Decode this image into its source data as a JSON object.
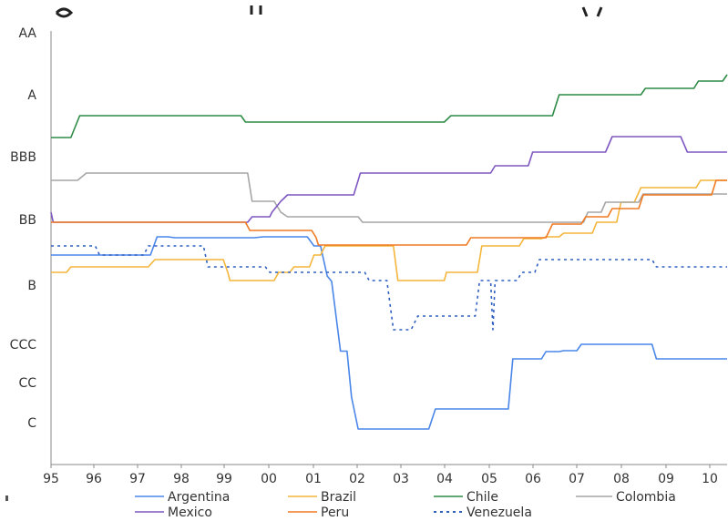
{
  "chart_data": {
    "type": "line",
    "title": "",
    "xlabel": "",
    "ylabel": "",
    "x_ticks": [
      "95",
      "96",
      "97",
      "98",
      "99",
      "00",
      "01",
      "02",
      "03",
      "04",
      "05",
      "06",
      "07",
      "08",
      "09",
      "10"
    ],
    "y_ticks": [
      "AA",
      "A",
      "BBB",
      "BB",
      "B",
      "CCC",
      "CC",
      "C"
    ],
    "xlim": [
      1995,
      2010.3
    ],
    "grid": false,
    "legend_position": "bottom",
    "series": [
      {
        "name": "Argentina",
        "color": "#4a86e8",
        "style": "solid",
        "points": [
          [
            1995,
            4.25
          ],
          [
            1997.25,
            4.25
          ],
          [
            1997.4,
            4.6
          ],
          [
            1997.65,
            4.6
          ],
          [
            1997.8,
            4.75
          ],
          [
            1999.6,
            4.75
          ],
          [
            1999.8,
            4.6
          ],
          [
            2000.8,
            4.6
          ],
          [
            2000.95,
            4.4
          ],
          [
            2001.1,
            4.4
          ],
          [
            2001.25,
            3.95
          ],
          [
            2001.35,
            3.8
          ],
          [
            2001.55,
            2.8
          ],
          [
            2001.7,
            2.8
          ],
          [
            2001.8,
            1.7
          ],
          [
            2001.95,
            0.8
          ],
          [
            2003.55,
            0.8
          ],
          [
            2003.7,
            1.05
          ],
          [
            2005.35,
            1.05
          ],
          [
            2005.45,
            2.65
          ],
          [
            2006.1,
            2.65
          ],
          [
            2006.2,
            2.75
          ],
          [
            2006.5,
            2.75
          ],
          [
            2006.6,
            2.85
          ],
          [
            2006.9,
            2.85
          ],
          [
            2007.0,
            2.95
          ],
          [
            2008.6,
            2.95
          ],
          [
            2008.7,
            2.6
          ],
          [
            2010.3,
            2.6
          ]
        ]
      },
      {
        "name": "Brazil",
        "color": "#f4b63a",
        "style": "solid",
        "points": [
          [
            1995,
            4.0
          ],
          [
            1995.35,
            4.0
          ],
          [
            1995.45,
            4.1
          ],
          [
            1997.2,
            4.1
          ],
          [
            1997.35,
            4.2
          ],
          [
            1998.9,
            4.2
          ],
          [
            1999.0,
            4.0
          ],
          [
            1999.05,
            3.85
          ],
          [
            2000.05,
            3.85
          ],
          [
            2000.15,
            4.0
          ],
          [
            2000.4,
            4.0
          ],
          [
            2000.5,
            4.1
          ],
          [
            2000.85,
            4.1
          ],
          [
            2000.95,
            4.25
          ],
          [
            2001.1,
            4.25
          ],
          [
            2001.2,
            4.4
          ],
          [
            2001.85,
            4.4
          ],
          [
            2002.75,
            4.4
          ],
          [
            2002.85,
            3.85
          ],
          [
            2003.9,
            3.85
          ],
          [
            2003.95,
            4.0
          ],
          [
            2004.65,
            4.0
          ],
          [
            2004.75,
            4.4
          ],
          [
            2005.6,
            4.4
          ],
          [
            2005.7,
            4.5
          ],
          [
            2006.1,
            4.5
          ],
          [
            2006.2,
            4.6
          ],
          [
            2006.5,
            4.6
          ],
          [
            2006.6,
            4.8
          ],
          [
            2007.25,
            4.8
          ],
          [
            2007.35,
            5.05
          ],
          [
            2007.8,
            5.05
          ],
          [
            2007.9,
            5.3
          ],
          [
            2008.2,
            5.3
          ],
          [
            2008.35,
            5.6
          ],
          [
            2009.6,
            5.6
          ],
          [
            2009.7,
            5.75
          ],
          [
            2010.3,
            5.75
          ]
        ]
      },
      {
        "name": "Chile",
        "color": "#2e8b46",
        "style": "solid",
        "points": [
          [
            1995,
            6.35
          ],
          [
            1995.45,
            6.35
          ],
          [
            1995.65,
            6.65
          ],
          [
            1999.3,
            6.65
          ],
          [
            1999.4,
            6.55
          ],
          [
            2003.9,
            6.55
          ],
          [
            2004.05,
            6.7
          ],
          [
            2006.35,
            6.7
          ],
          [
            2006.5,
            6.9
          ],
          [
            2007.55,
            6.9
          ],
          [
            2007.65,
            7.0
          ],
          [
            2008.35,
            7.0
          ],
          [
            2008.45,
            7.1
          ],
          [
            2009.55,
            7.1
          ],
          [
            2009.65,
            7.2
          ],
          [
            2010.2,
            7.2
          ],
          [
            2010.3,
            7.28
          ]
        ]
      },
      {
        "name": "Colombia",
        "color": "#a6a6a6",
        "style": "solid",
        "points": [
          [
            1995,
            5.75
          ],
          [
            1995.6,
            5.75
          ],
          [
            1995.8,
            5.85
          ],
          [
            1999.45,
            5.85
          ],
          [
            1999.55,
            5.35
          ],
          [
            2000.05,
            5.35
          ],
          [
            2000.2,
            5.15
          ],
          [
            2000.35,
            5.1
          ],
          [
            2001.95,
            5.1
          ],
          [
            2002.05,
            5.0
          ],
          [
            2007.05,
            5.0
          ],
          [
            2007.15,
            5.15
          ],
          [
            2007.45,
            5.15
          ],
          [
            2007.55,
            5.3
          ],
          [
            2008.3,
            5.3
          ],
          [
            2008.4,
            5.55
          ],
          [
            2010.3,
            5.55
          ]
        ]
      },
      {
        "name": "Mexico",
        "color": "#7e57c2",
        "style": "solid",
        "points": [
          [
            1995,
            5.15
          ],
          [
            1995.05,
            5.0
          ],
          [
            1999.45,
            5.0
          ],
          [
            1999.55,
            5.1
          ],
          [
            1999.95,
            5.1
          ],
          [
            2000.0,
            5.15
          ],
          [
            2000.2,
            5.35
          ],
          [
            2000.35,
            5.5
          ],
          [
            2001.85,
            5.5
          ],
          [
            2002.0,
            5.85
          ],
          [
            2004.95,
            5.85
          ],
          [
            2005.05,
            6.0
          ],
          [
            2005.8,
            6.0
          ],
          [
            2005.9,
            6.1
          ],
          [
            2007.55,
            6.1
          ],
          [
            2007.7,
            6.3
          ],
          [
            2009.25,
            6.3
          ],
          [
            2009.4,
            6.1
          ],
          [
            2010.3,
            6.1
          ]
        ]
      },
      {
        "name": "Peru",
        "color": "#f07a23",
        "style": "solid",
        "points": [
          [
            1995,
            5.0
          ],
          [
            1999.4,
            5.0
          ],
          [
            1999.5,
            4.85
          ],
          [
            2000.9,
            4.85
          ],
          [
            2001.0,
            4.75
          ],
          [
            2001.05,
            4.65
          ],
          [
            2004.4,
            4.65
          ],
          [
            2004.5,
            4.75
          ],
          [
            2006.2,
            4.75
          ],
          [
            2006.35,
            4.9
          ],
          [
            2007.0,
            4.9
          ],
          [
            2007.1,
            5.1
          ],
          [
            2007.6,
            5.1
          ],
          [
            2007.7,
            5.25
          ],
          [
            2008.3,
            5.25
          ],
          [
            2008.4,
            5.5
          ],
          [
            2009.95,
            5.5
          ],
          [
            2010.05,
            5.75
          ],
          [
            2010.3,
            5.75
          ]
        ]
      },
      {
        "name": "Venezuela",
        "color": "#2f5fbf",
        "style": "dotted",
        "points": [
          [
            1995,
            4.4
          ],
          [
            1996.0,
            4.4
          ],
          [
            1996.1,
            4.25
          ],
          [
            1997.1,
            4.25
          ],
          [
            1997.2,
            4.4
          ],
          [
            1998.45,
            4.4
          ],
          [
            1998.55,
            4.1
          ],
          [
            1999.85,
            4.1
          ],
          [
            1999.95,
            4.0
          ],
          [
            2002.1,
            4.0
          ],
          [
            2002.2,
            3.85
          ],
          [
            2002.6,
            3.85
          ],
          [
            2002.75,
            3.2
          ],
          [
            2003.15,
            3.2
          ],
          [
            2003.3,
            3.4
          ],
          [
            2004.6,
            3.4
          ],
          [
            2004.7,
            3.85
          ],
          [
            2004.95,
            3.85
          ],
          [
            2005.0,
            3.2
          ],
          [
            2005.05,
            3.7
          ],
          [
            2005.15,
            3.7
          ],
          [
            2005.2,
            3.85
          ],
          [
            2005.55,
            3.85
          ],
          [
            2005.65,
            4.0
          ],
          [
            2005.95,
            4.0
          ],
          [
            2006.05,
            4.2
          ],
          [
            2008.6,
            4.2
          ],
          [
            2008.7,
            4.1
          ],
          [
            2010.3,
            4.1
          ]
        ]
      }
    ]
  }
}
